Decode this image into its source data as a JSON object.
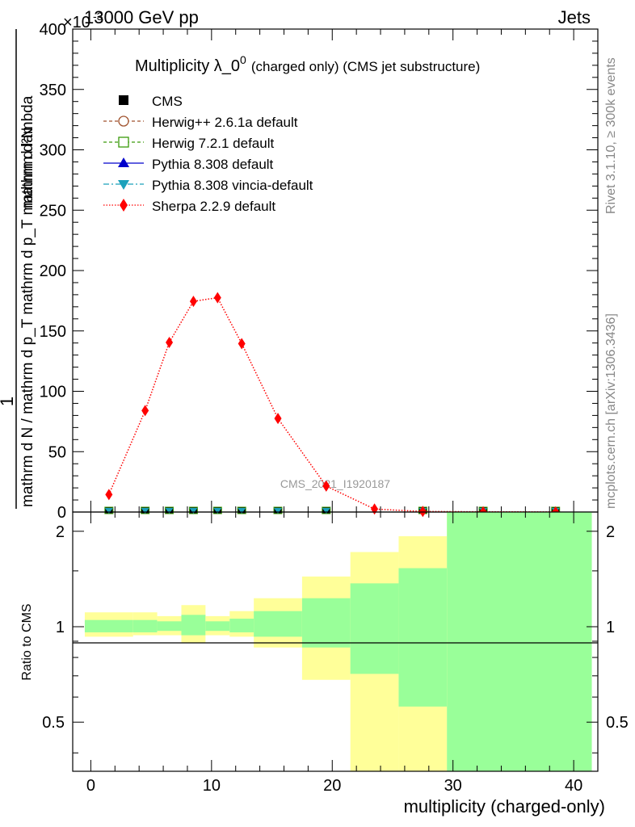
{
  "header": {
    "energy_label": "13000 GeV pp",
    "process_label": "Jets",
    "exponent_label": "×10",
    "exponent_power": "-3"
  },
  "side_labels": {
    "rivet": "Rivet 3.1.10, ≥ 300k events",
    "mcplots": "mcplots.cern.ch [arXiv:1306.3436]"
  },
  "colors": {
    "cms": "#000000",
    "herwigpp": "#a0522d",
    "herwig7": "#3a9a0a",
    "pythia": "#0000cc",
    "vincia": "#1ba1bb",
    "sherpa": "#ff0000",
    "band_inner": "#99ff99",
    "band_outer": "#ffff99"
  },
  "chart_data": [
    {
      "type": "line",
      "title_main": "Multiplicity λ_0",
      "title_sup": "0",
      "title_suffix": "(charged only) (CMS jet substructure)",
      "analysis_label": "CMS_2021_I1920187",
      "ylabel": "1 / mathrm d N / mathrm d p_T mathrm d p_T mathrm d lambda  mathrm d²N",
      "ylabel_num": "mathrm d²N",
      "ylabel_den": "mathrm d N / mathrm d p_T mathrm d p_T mathrm d lambda",
      "ylabel_one": "1",
      "ylim": [
        0,
        400
      ],
      "y_ticks": [
        0,
        50,
        100,
        150,
        200,
        250,
        300,
        350,
        400
      ],
      "x_axis_range": [
        -1.5,
        42
      ],
      "legend": [
        {
          "name": "CMS",
          "style": "cms"
        },
        {
          "name": "Herwig++ 2.6.1a default",
          "style": "herwigpp"
        },
        {
          "name": "Herwig 7.2.1 default",
          "style": "herwig7"
        },
        {
          "name": "Pythia 8.308 default",
          "style": "pythia"
        },
        {
          "name": "Pythia 8.308 vincia-default",
          "style": "vincia"
        },
        {
          "name": "Sherpa 2.2.9 default",
          "style": "sherpa"
        }
      ],
      "series": [
        {
          "name": "Sherpa 2.2.9 default",
          "x": [
            1.5,
            4.5,
            6.5,
            8.5,
            10.5,
            12.5,
            15.5,
            19.5,
            23.5,
            27.5,
            32.5,
            38.5
          ],
          "y": [
            14.5,
            84,
            140.5,
            174.5,
            177.5,
            139.5,
            77.5,
            21.5,
            2.5,
            0.5,
            0.2,
            0.1
          ]
        }
      ],
      "overlap_markers_x": [
        1.5,
        4.5,
        6.5,
        8.5,
        10.5,
        12.5,
        15.5,
        19.5,
        27.5,
        32.5,
        38.5
      ]
    },
    {
      "type": "area",
      "ylabel": "Ratio to CMS",
      "xlabel": "multiplicity (charged-only)",
      "ylim": [
        0.35,
        2.3
      ],
      "y_ticks": [
        0.5,
        1,
        2
      ],
      "y_tick_labels": [
        "0.5",
        "1",
        "2"
      ],
      "x_ticks": [
        0,
        10,
        20,
        30,
        40
      ],
      "x_axis_range": [
        -1.5,
        42
      ],
      "bins": [
        {
          "lo": -0.5,
          "hi": 3.5,
          "inner_lo": 0.96,
          "inner_hi": 1.05,
          "outer_lo": 0.93,
          "outer_hi": 1.11
        },
        {
          "lo": 3.5,
          "hi": 5.5,
          "inner_lo": 0.96,
          "inner_hi": 1.05,
          "outer_lo": 0.94,
          "outer_hi": 1.11
        },
        {
          "lo": 5.5,
          "hi": 7.5,
          "inner_lo": 0.97,
          "inner_hi": 1.04,
          "outer_lo": 0.94,
          "outer_hi": 1.08
        },
        {
          "lo": 7.5,
          "hi": 9.5,
          "inner_lo": 0.94,
          "inner_hi": 1.09,
          "outer_lo": 0.89,
          "outer_hi": 1.17
        },
        {
          "lo": 9.5,
          "hi": 11.5,
          "inner_lo": 0.97,
          "inner_hi": 1.04,
          "outer_lo": 0.94,
          "outer_hi": 1.08
        },
        {
          "lo": 11.5,
          "hi": 13.5,
          "inner_lo": 0.96,
          "inner_hi": 1.06,
          "outer_lo": 0.93,
          "outer_hi": 1.12
        },
        {
          "lo": 13.5,
          "hi": 17.5,
          "inner_lo": 0.93,
          "inner_hi": 1.12,
          "outer_lo": 0.86,
          "outer_hi": 1.23
        },
        {
          "lo": 17.5,
          "hi": 21.5,
          "inner_lo": 0.86,
          "inner_hi": 1.23,
          "outer_lo": 0.68,
          "outer_hi": 1.44
        },
        {
          "lo": 21.5,
          "hi": 25.5,
          "inner_lo": 0.71,
          "inner_hi": 1.37,
          "outer_lo": 0.35,
          "outer_hi": 1.72
        },
        {
          "lo": 25.5,
          "hi": 29.5,
          "inner_lo": 0.56,
          "inner_hi": 1.53,
          "outer_lo": 0.35,
          "outer_hi": 1.93
        },
        {
          "lo": 29.5,
          "hi": 41.5,
          "inner_lo": 0.35,
          "inner_hi": 2.3,
          "outer_lo": 0.35,
          "outer_hi": 2.3
        }
      ]
    }
  ]
}
